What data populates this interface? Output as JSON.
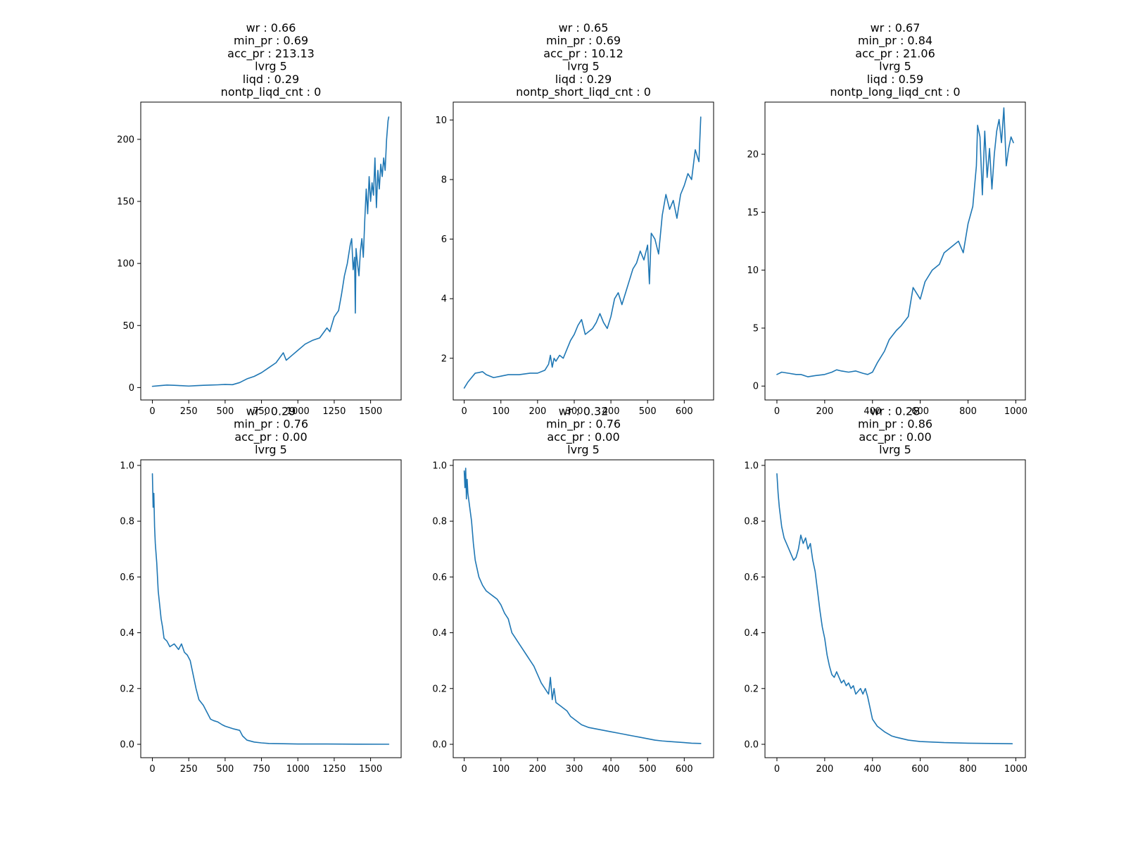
{
  "figure": {
    "background": "#ffffff",
    "line_color": "#1f77b4"
  },
  "chart_data": [
    {
      "type": "line",
      "title": [
        "wr : 0.66",
        "min_pr : 0.69",
        "acc_pr : 213.13",
        "lvrg 5",
        "liqd : 0.29",
        "nontp_liqd_cnt : 0"
      ],
      "xlabel": "",
      "ylabel": "",
      "xlim": [
        -80,
        1710
      ],
      "ylim": [
        -10,
        230
      ],
      "xticks": [
        0,
        250,
        500,
        750,
        1000,
        1250,
        1500
      ],
      "yticks": [
        0,
        50,
        100,
        150,
        200
      ],
      "grid": false,
      "series": [
        {
          "x": [
            0,
            50,
            100,
            150,
            200,
            250,
            300,
            350,
            400,
            450,
            500,
            550,
            600,
            650,
            700,
            750,
            800,
            850,
            900,
            920,
            950,
            1000,
            1050,
            1100,
            1150,
            1200,
            1220,
            1250,
            1280,
            1300,
            1320,
            1340,
            1360,
            1370,
            1380,
            1390,
            1395,
            1400,
            1410,
            1420,
            1430,
            1440,
            1450,
            1460,
            1470,
            1480,
            1490,
            1500,
            1510,
            1520,
            1530,
            1540,
            1550,
            1560,
            1570,
            1580,
            1590,
            1600,
            1610,
            1620,
            1625
          ],
          "y": [
            1,
            1.5,
            2,
            1.8,
            1.5,
            1.2,
            1.5,
            1.8,
            2,
            2.2,
            2.5,
            2.3,
            4,
            7,
            9,
            12,
            16,
            20,
            28,
            22,
            25,
            30,
            35,
            38,
            40,
            48,
            45,
            57,
            62,
            75,
            90,
            100,
            115,
            120,
            95,
            105,
            60,
            112,
            100,
            90,
            110,
            120,
            105,
            135,
            160,
            140,
            170,
            150,
            165,
            155,
            185,
            145,
            175,
            160,
            180,
            170,
            185,
            175,
            200,
            215,
            218
          ]
        }
      ]
    },
    {
      "type": "line",
      "title": [
        "wr : 0.65",
        "min_pr : 0.69",
        "acc_pr : 10.12",
        "lvrg 5",
        "liqd : 0.29",
        "nontp_short_liqd_cnt : 0"
      ],
      "xlabel": "",
      "ylabel": "",
      "xlim": [
        -30,
        680
      ],
      "ylim": [
        0.6,
        10.6
      ],
      "xticks": [
        0,
        100,
        200,
        300,
        400,
        500,
        600
      ],
      "yticks": [
        2,
        4,
        6,
        8,
        10
      ],
      "grid": false,
      "series": [
        {
          "x": [
            0,
            10,
            20,
            30,
            40,
            50,
            60,
            70,
            80,
            100,
            120,
            150,
            180,
            200,
            220,
            230,
            235,
            240,
            245,
            250,
            260,
            270,
            280,
            290,
            300,
            310,
            320,
            330,
            340,
            350,
            360,
            370,
            380,
            390,
            400,
            410,
            420,
            430,
            440,
            450,
            460,
            470,
            480,
            490,
            500,
            505,
            510,
            520,
            530,
            540,
            550,
            560,
            570,
            580,
            590,
            600,
            610,
            620,
            630,
            640,
            645
          ],
          "y": [
            1,
            1.2,
            1.35,
            1.5,
            1.52,
            1.55,
            1.45,
            1.4,
            1.35,
            1.4,
            1.45,
            1.45,
            1.5,
            1.5,
            1.6,
            1.8,
            2.1,
            1.7,
            2.0,
            1.9,
            2.1,
            2.0,
            2.3,
            2.6,
            2.8,
            3.1,
            3.3,
            2.8,
            2.9,
            3.0,
            3.2,
            3.5,
            3.2,
            3.0,
            3.4,
            4.0,
            4.2,
            3.8,
            4.2,
            4.6,
            5.0,
            5.2,
            5.6,
            5.3,
            5.8,
            4.5,
            6.2,
            6.0,
            5.5,
            6.8,
            7.5,
            7.0,
            7.3,
            6.7,
            7.5,
            7.8,
            8.2,
            8.0,
            9.0,
            8.6,
            10.1
          ]
        }
      ]
    },
    {
      "type": "line",
      "title": [
        "wr : 0.67",
        "min_pr : 0.84",
        "acc_pr : 21.06",
        "lvrg 5",
        "liqd : 0.59",
        "nontp_long_liqd_cnt : 0"
      ],
      "xlabel": "",
      "ylabel": "",
      "xlim": [
        -50,
        1040
      ],
      "ylim": [
        -1.2,
        24.5
      ],
      "xticks": [
        0,
        200,
        400,
        600,
        800,
        1000
      ],
      "yticks": [
        0,
        5,
        10,
        15,
        20
      ],
      "grid": false,
      "series": [
        {
          "x": [
            0,
            20,
            50,
            80,
            100,
            130,
            160,
            200,
            230,
            250,
            270,
            300,
            330,
            360,
            380,
            400,
            420,
            450,
            470,
            500,
            520,
            550,
            570,
            600,
            620,
            650,
            680,
            700,
            730,
            760,
            780,
            800,
            820,
            835,
            840,
            850,
            860,
            870,
            880,
            890,
            900,
            910,
            920,
            930,
            940,
            950,
            960,
            970,
            980,
            990
          ],
          "y": [
            1,
            1.2,
            1.1,
            1.0,
            1.0,
            0.8,
            0.9,
            1.0,
            1.2,
            1.4,
            1.3,
            1.2,
            1.3,
            1.1,
            1.0,
            1.2,
            2.0,
            3.0,
            4.0,
            4.8,
            5.2,
            6.0,
            8.5,
            7.5,
            9.0,
            10.0,
            10.5,
            11.5,
            12.0,
            12.5,
            11.5,
            14.0,
            15.5,
            19.0,
            22.5,
            21.5,
            16.5,
            22.0,
            18.0,
            20.5,
            17.0,
            20.0,
            22.0,
            23.0,
            21.0,
            24.0,
            19.0,
            20.5,
            21.5,
            21.0
          ]
        }
      ]
    },
    {
      "type": "line",
      "title": [
        "wr : 0.29",
        "min_pr : 0.76",
        "acc_pr : 0.00",
        "lvrg 5"
      ],
      "xlabel": "",
      "ylabel": "",
      "xlim": [
        -80,
        1710
      ],
      "ylim": [
        -0.048,
        1.02
      ],
      "xticks": [
        0,
        250,
        500,
        750,
        1000,
        1250,
        1500
      ],
      "yticks": [
        0.0,
        0.2,
        0.4,
        0.6,
        0.8,
        1.0
      ],
      "grid": false,
      "series": [
        {
          "x": [
            0,
            5,
            10,
            15,
            20,
            30,
            40,
            50,
            60,
            70,
            80,
            100,
            120,
            150,
            180,
            200,
            220,
            240,
            260,
            280,
            300,
            320,
            350,
            380,
            400,
            420,
            450,
            480,
            500,
            530,
            560,
            600,
            620,
            650,
            700,
            750,
            800,
            900,
            1000,
            1200,
            1400,
            1625
          ],
          "y": [
            0.97,
            0.85,
            0.9,
            0.78,
            0.72,
            0.65,
            0.55,
            0.5,
            0.45,
            0.42,
            0.38,
            0.37,
            0.35,
            0.36,
            0.34,
            0.36,
            0.33,
            0.32,
            0.3,
            0.25,
            0.2,
            0.16,
            0.14,
            0.11,
            0.09,
            0.085,
            0.08,
            0.07,
            0.065,
            0.06,
            0.055,
            0.05,
            0.03,
            0.015,
            0.008,
            0.005,
            0.003,
            0.002,
            0.001,
            0.001,
            0.0005,
            0.0003
          ]
        }
      ]
    },
    {
      "type": "line",
      "title": [
        "wr : 0.32",
        "min_pr : 0.76",
        "acc_pr : 0.00",
        "lvrg 5"
      ],
      "xlabel": "",
      "ylabel": "",
      "xlim": [
        -30,
        680
      ],
      "ylim": [
        -0.048,
        1.02
      ],
      "xticks": [
        0,
        100,
        200,
        300,
        400,
        500,
        600
      ],
      "yticks": [
        0.0,
        0.2,
        0.4,
        0.6,
        0.8,
        1.0
      ],
      "grid": false,
      "series": [
        {
          "x": [
            0,
            2,
            4,
            6,
            8,
            10,
            15,
            20,
            25,
            30,
            40,
            50,
            60,
            70,
            80,
            90,
            100,
            110,
            120,
            130,
            140,
            150,
            160,
            170,
            180,
            190,
            200,
            210,
            220,
            230,
            235,
            240,
            245,
            250,
            260,
            270,
            280,
            290,
            300,
            320,
            340,
            360,
            380,
            400,
            420,
            440,
            460,
            480,
            500,
            520,
            540,
            560,
            580,
            600,
            620,
            645
          ],
          "y": [
            0.98,
            0.92,
            0.99,
            0.88,
            0.95,
            0.9,
            0.85,
            0.8,
            0.72,
            0.66,
            0.6,
            0.57,
            0.55,
            0.54,
            0.53,
            0.52,
            0.5,
            0.47,
            0.45,
            0.4,
            0.38,
            0.36,
            0.34,
            0.32,
            0.3,
            0.28,
            0.25,
            0.22,
            0.2,
            0.18,
            0.24,
            0.16,
            0.2,
            0.15,
            0.14,
            0.13,
            0.12,
            0.1,
            0.09,
            0.07,
            0.06,
            0.055,
            0.05,
            0.045,
            0.04,
            0.035,
            0.03,
            0.025,
            0.02,
            0.015,
            0.012,
            0.01,
            0.008,
            0.006,
            0.004,
            0.003
          ]
        }
      ]
    },
    {
      "type": "line",
      "title": [
        "wr : 0.28",
        "min_pr : 0.86",
        "acc_pr : 0.00",
        "lvrg 5"
      ],
      "xlabel": "",
      "ylabel": "",
      "xlim": [
        -50,
        1040
      ],
      "ylim": [
        -0.048,
        1.02
      ],
      "xticks": [
        0,
        200,
        400,
        600,
        800,
        1000
      ],
      "yticks": [
        0.0,
        0.2,
        0.4,
        0.6,
        0.8,
        1.0
      ],
      "grid": false,
      "series": [
        {
          "x": [
            0,
            5,
            10,
            20,
            30,
            40,
            50,
            60,
            70,
            80,
            90,
            100,
            110,
            120,
            130,
            140,
            150,
            160,
            170,
            180,
            190,
            200,
            210,
            220,
            230,
            240,
            250,
            260,
            270,
            280,
            290,
            300,
            310,
            320,
            330,
            340,
            350,
            360,
            370,
            380,
            390,
            400,
            420,
            450,
            480,
            500,
            550,
            600,
            700,
            800,
            900,
            985
          ],
          "y": [
            0.97,
            0.9,
            0.85,
            0.78,
            0.74,
            0.72,
            0.7,
            0.68,
            0.66,
            0.67,
            0.7,
            0.75,
            0.72,
            0.74,
            0.7,
            0.72,
            0.66,
            0.62,
            0.55,
            0.48,
            0.42,
            0.38,
            0.32,
            0.28,
            0.25,
            0.24,
            0.26,
            0.24,
            0.22,
            0.23,
            0.21,
            0.22,
            0.2,
            0.21,
            0.18,
            0.19,
            0.2,
            0.18,
            0.2,
            0.17,
            0.13,
            0.09,
            0.065,
            0.045,
            0.03,
            0.025,
            0.015,
            0.01,
            0.006,
            0.004,
            0.003,
            0.002
          ]
        }
      ]
    }
  ]
}
